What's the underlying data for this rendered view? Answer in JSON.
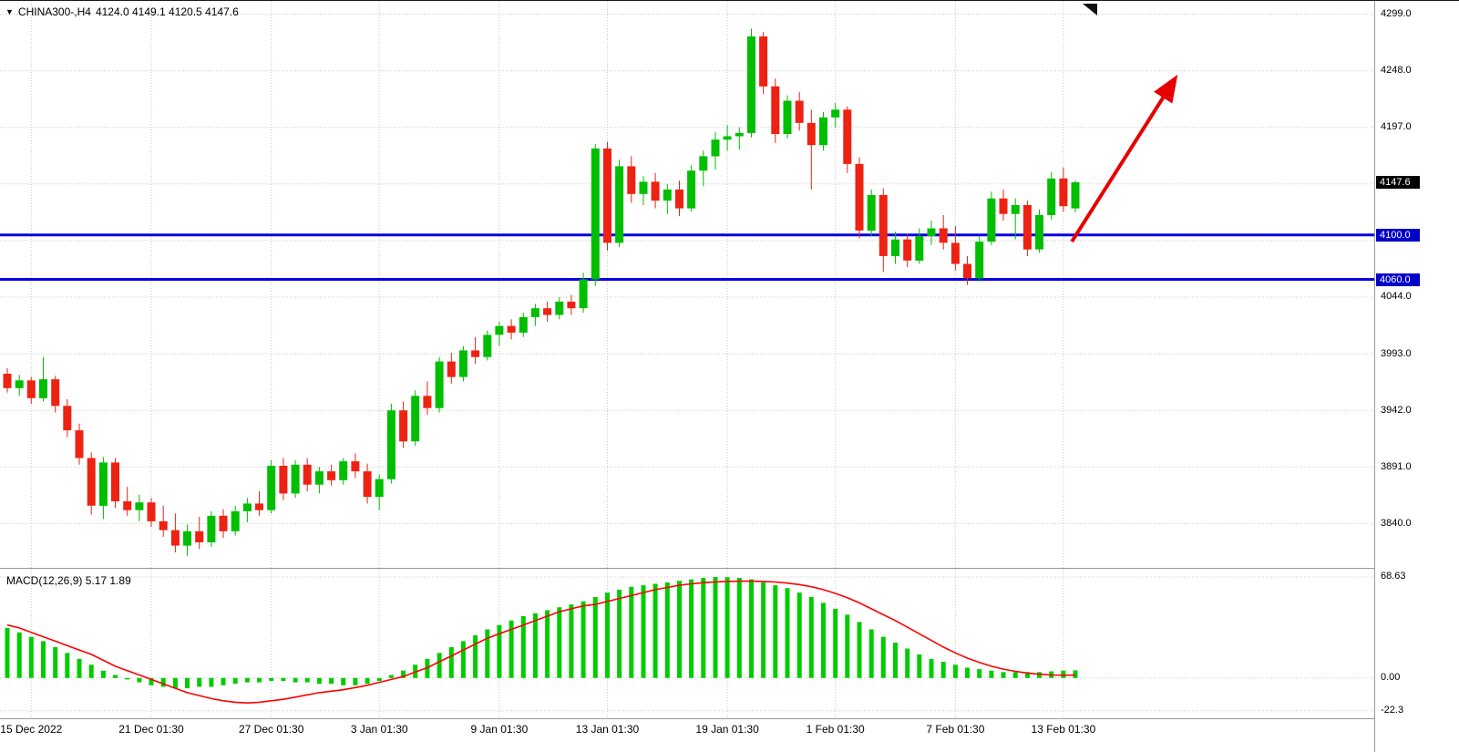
{
  "header": {
    "dropdown_icon": "▼",
    "symbol_label": "CHINA300-,H4",
    "ohlc": "4124.0 4149.1 4120.5 4147.6"
  },
  "indicator_label": "MACD(12,26,9) 5.17 1.89",
  "colors": {
    "bull": "#00BE00",
    "bear": "#EE2212",
    "grid": "#C8C8C8",
    "hline": "#0A00E6",
    "hline_tag_bg": "#0000C8",
    "price_tag_bg": "#000000",
    "macd_hist": "#00CC00",
    "macd_signal": "#FF0000",
    "arrow": "#E80000",
    "axis_text": "#000000",
    "separator": "#9A9A9A"
  },
  "price_axis": {
    "labels": [
      {
        "value": 4299.0,
        "text": "4299.0"
      },
      {
        "value": 4248.0,
        "text": "4248.0"
      },
      {
        "value": 4197.0,
        "text": "4197.0"
      },
      {
        "value": 4044.0,
        "text": "4044.0"
      },
      {
        "value": 3993.0,
        "text": "3993.0"
      },
      {
        "value": 3942.0,
        "text": "3942.0"
      },
      {
        "value": 3891.0,
        "text": "3891.0"
      },
      {
        "value": 3840.0,
        "text": "3840.0"
      }
    ],
    "tags": [
      {
        "value": 4147.6,
        "text": "4147.6",
        "bg": "#000000"
      },
      {
        "value": 4100.0,
        "text": "4100.0",
        "bg": "#0000C8"
      },
      {
        "value": 4060.0,
        "text": "4060.0",
        "bg": "#0000C8"
      }
    ]
  },
  "macd_axis": {
    "labels": [
      {
        "value": 68.63,
        "text": "68.63"
      },
      {
        "value": 0,
        "text": "0.00"
      },
      {
        "value": -22.3,
        "text": "-22.3"
      }
    ]
  },
  "time_axis": {
    "labels": [
      {
        "index": 2,
        "text": "15 Dec 2022"
      },
      {
        "index": 12,
        "text": "21 Dec 01:30"
      },
      {
        "index": 22,
        "text": "27 Dec 01:30"
      },
      {
        "index": 31,
        "text": "3 Jan 01:30"
      },
      {
        "index": 41,
        "text": "9 Jan 01:30"
      },
      {
        "index": 50,
        "text": "13 Jan 01:30"
      },
      {
        "index": 60,
        "text": "19 Jan 01:30"
      },
      {
        "index": 69,
        "text": "1 Feb 01:30"
      },
      {
        "index": 79,
        "text": "7 Feb 01:30"
      },
      {
        "index": 88,
        "text": "13 Feb 01:30"
      }
    ]
  },
  "chart_data": [
    {
      "type": "candlestick",
      "title": "CHINA300-,H4",
      "timeframe": "H4",
      "current_price": 4147.6,
      "current_bar": {
        "open": 4124.0,
        "high": 4149.1,
        "low": 4120.5,
        "close": 4147.6
      },
      "ylim": [
        3800,
        4311
      ],
      "grid_values": [
        4299,
        4248,
        4197,
        4146,
        4095,
        4044,
        3993,
        3942,
        3891,
        3840
      ],
      "hlines": [
        {
          "price": 4100.0,
          "color": "#0A00E6",
          "width": 3,
          "label": "4100.0"
        },
        {
          "price": 4060.0,
          "color": "#0A00E6",
          "width": 3,
          "label": "4060.0"
        }
      ],
      "annotations": [
        {
          "type": "arrow",
          "from_index": 88.7,
          "from_price": 4094,
          "to_index": 97.2,
          "to_price": 4239,
          "color": "#E80000",
          "width": 4
        }
      ],
      "candles": [
        [
          3975,
          3980,
          3958,
          3962
        ],
        [
          3962,
          3974,
          3955,
          3969
        ],
        [
          3969,
          3972,
          3948,
          3953
        ],
        [
          3953,
          3990,
          3950,
          3970
        ],
        [
          3970,
          3973,
          3940,
          3946
        ],
        [
          3946,
          3952,
          3918,
          3924
        ],
        [
          3924,
          3930,
          3893,
          3899
        ],
        [
          3899,
          3904,
          3848,
          3856
        ],
        [
          3856,
          3900,
          3844,
          3895
        ],
        [
          3895,
          3899,
          3854,
          3860
        ],
        [
          3860,
          3873,
          3847,
          3852
        ],
        [
          3852,
          3866,
          3842,
          3859
        ],
        [
          3859,
          3863,
          3837,
          3842
        ],
        [
          3842,
          3856,
          3828,
          3834
        ],
        [
          3834,
          3849,
          3814,
          3820
        ],
        [
          3820,
          3839,
          3811,
          3833
        ],
        [
          3833,
          3846,
          3817,
          3823
        ],
        [
          3823,
          3851,
          3819,
          3847
        ],
        [
          3847,
          3853,
          3827,
          3833
        ],
        [
          3833,
          3856,
          3829,
          3851
        ],
        [
          3851,
          3863,
          3841,
          3858
        ],
        [
          3858,
          3869,
          3847,
          3852
        ],
        [
          3852,
          3897,
          3849,
          3892
        ],
        [
          3892,
          3899,
          3861,
          3867
        ],
        [
          3867,
          3897,
          3863,
          3893
        ],
        [
          3893,
          3899,
          3869,
          3875
        ],
        [
          3875,
          3891,
          3867,
          3887
        ],
        [
          3887,
          3893,
          3874,
          3879
        ],
        [
          3879,
          3899,
          3875,
          3896
        ],
        [
          3896,
          3903,
          3881,
          3887
        ],
        [
          3887,
          3894,
          3858,
          3864
        ],
        [
          3864,
          3884,
          3852,
          3880
        ],
        [
          3880,
          3948,
          3876,
          3942
        ],
        [
          3942,
          3950,
          3908,
          3914
        ],
        [
          3914,
          3960,
          3910,
          3955
        ],
        [
          3955,
          3968,
          3938,
          3944
        ],
        [
          3944,
          3990,
          3940,
          3986
        ],
        [
          3986,
          3994,
          3966,
          3972
        ],
        [
          3972,
          4000,
          3968,
          3996
        ],
        [
          3996,
          4008,
          3984,
          3990
        ],
        [
          3990,
          4014,
          3987,
          4010
        ],
        [
          4010,
          4022,
          4000,
          4018
        ],
        [
          4018,
          4024,
          4006,
          4012
        ],
        [
          4012,
          4030,
          4008,
          4026
        ],
        [
          4026,
          4038,
          4018,
          4034
        ],
        [
          4034,
          4040,
          4022,
          4028
        ],
        [
          4028,
          4044,
          4024,
          4040
        ],
        [
          4040,
          4046,
          4028,
          4034
        ],
        [
          4034,
          4066,
          4030,
          4060
        ],
        [
          4060,
          4182,
          4054,
          4178
        ],
        [
          4178,
          4184,
          4086,
          4093
        ],
        [
          4093,
          4168,
          4089,
          4162
        ],
        [
          4162,
          4171,
          4129,
          4137
        ],
        [
          4137,
          4153,
          4127,
          4148
        ],
        [
          4148,
          4156,
          4124,
          4131
        ],
        [
          4131,
          4146,
          4119,
          4141
        ],
        [
          4141,
          4149,
          4117,
          4124
        ],
        [
          4124,
          4163,
          4121,
          4158
        ],
        [
          4158,
          4176,
          4144,
          4171
        ],
        [
          4171,
          4193,
          4159,
          4186
        ],
        [
          4186,
          4199,
          4176,
          4189
        ],
        [
          4189,
          4197,
          4177,
          4192
        ],
        [
          4192,
          4286,
          4188,
          4279
        ],
        [
          4279,
          4283,
          4227,
          4234
        ],
        [
          4234,
          4241,
          4183,
          4191
        ],
        [
          4191,
          4226,
          4187,
          4221
        ],
        [
          4221,
          4229,
          4194,
          4201
        ],
        [
          4201,
          4213,
          4141,
          4181
        ],
        [
          4181,
          4211,
          4176,
          4206
        ],
        [
          4206,
          4219,
          4197,
          4213
        ],
        [
          4213,
          4216,
          4156,
          4164
        ],
        [
          4164,
          4170,
          4097,
          4104
        ],
        [
          4104,
          4141,
          4099,
          4136
        ],
        [
          4136,
          4142,
          4067,
          4081
        ],
        [
          4081,
          4103,
          4074,
          4096
        ],
        [
          4096,
          4101,
          4071,
          4077
        ],
        [
          4077,
          4106,
          4074,
          4099
        ],
        [
          4099,
          4113,
          4091,
          4106
        ],
        [
          4106,
          4118,
          4087,
          4093
        ],
        [
          4093,
          4108,
          4068,
          4074
        ],
        [
          4074,
          4081,
          4055,
          4061
        ],
        [
          4061,
          4099,
          4058,
          4094
        ],
        [
          4094,
          4139,
          4091,
          4133
        ],
        [
          4133,
          4141,
          4113,
          4119
        ],
        [
          4119,
          4133,
          4096,
          4127
        ],
        [
          4127,
          4131,
          4081,
          4087
        ],
        [
          4087,
          4123,
          4084,
          4118
        ],
        [
          4118,
          4157,
          4114,
          4151
        ],
        [
          4151,
          4161,
          4121,
          4126
        ],
        [
          4124,
          4149.1,
          4120.5,
          4147.6
        ]
      ]
    },
    {
      "type": "macd",
      "params": "12,26,9",
      "values": {
        "macd": 5.17,
        "signal": 1.89
      },
      "ylim": [
        -27.4,
        74.2
      ],
      "grid_values": [
        68.63,
        0,
        -22.3
      ],
      "histogram": [
        34,
        31,
        28,
        25,
        21,
        17,
        13,
        9,
        5,
        2,
        -1,
        -3,
        -5,
        -6,
        -7,
        -7,
        -6,
        -6,
        -5,
        -4,
        -3,
        -3,
        -2,
        -2,
        -3,
        -3,
        -4,
        -4,
        -5,
        -5,
        -4,
        -2,
        2,
        5,
        9,
        13,
        17,
        21,
        25,
        29,
        33,
        36,
        39,
        42,
        44,
        46,
        48,
        50,
        52,
        55,
        58,
        60,
        62,
        63,
        64,
        65,
        66,
        67,
        68,
        68.6,
        68.5,
        68,
        67,
        65,
        63,
        61,
        58,
        55,
        51,
        47,
        43,
        38,
        33,
        28,
        24,
        20,
        16,
        13,
        11,
        9,
        7,
        6,
        5,
        4,
        4,
        4,
        4,
        4.5,
        5,
        5.17
      ],
      "signal": [
        36,
        34,
        31,
        28,
        25,
        22,
        19,
        16,
        12,
        8,
        5,
        2,
        -1,
        -4,
        -7,
        -10,
        -12,
        -14,
        -15.5,
        -16.5,
        -17,
        -16.5,
        -15.5,
        -14.5,
        -13,
        -11.5,
        -10,
        -9,
        -8,
        -6.5,
        -5,
        -3,
        -1,
        1,
        4,
        7,
        11,
        15,
        19,
        23,
        27,
        30,
        33,
        36,
        39,
        42,
        45,
        47,
        49,
        50,
        52,
        54,
        56,
        58,
        60,
        61.5,
        63,
        64,
        64.8,
        65.3,
        65.6,
        65.8,
        65.8,
        65.6,
        65.2,
        64.5,
        63.5,
        62,
        60,
        57.5,
        54.5,
        51,
        47,
        43,
        39,
        34.5,
        30,
        25.5,
        21,
        17,
        13.5,
        10.5,
        8,
        6,
        4.5,
        3.3,
        2.5,
        2,
        1.9,
        1.89
      ]
    }
  ]
}
